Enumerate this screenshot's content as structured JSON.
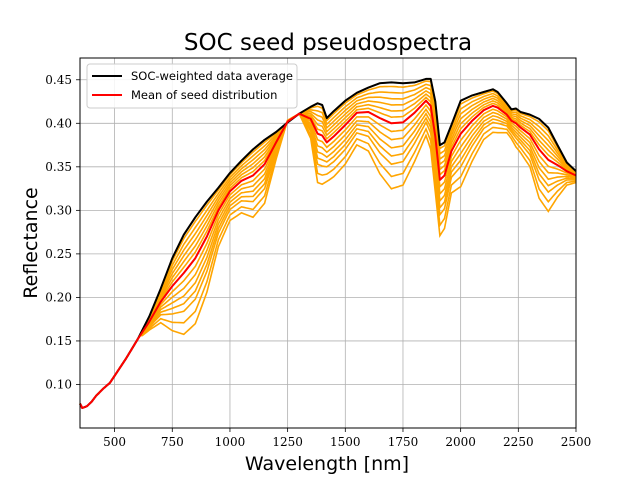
{
  "chart_data": {
    "type": "line",
    "title": "SOC seed pseudospectra",
    "xlabel": "Wavelength [nm]",
    "ylabel": "Reflectance",
    "xlim": [
      350,
      2500
    ],
    "ylim": [
      0.05,
      0.475
    ],
    "xticks": [
      500,
      750,
      1000,
      1250,
      1500,
      1750,
      2000,
      2250,
      2500
    ],
    "yticks": [
      0.1,
      0.15,
      0.2,
      0.25,
      0.3,
      0.35,
      0.4,
      0.45
    ],
    "xtick_labels": [
      "500",
      "750",
      "1000",
      "1250",
      "1500",
      "1750",
      "2000",
      "2250",
      "2500"
    ],
    "ytick_labels": [
      "0.10",
      "0.15",
      "0.20",
      "0.25",
      "0.30",
      "0.35",
      "0.40",
      "0.45"
    ],
    "grid": true,
    "legend_placement": "top-left",
    "series": [
      {
        "name": "SOC-weighted data average",
        "color": "#000000",
        "x": [
          350,
          360,
          380,
          400,
          420,
          450,
          480,
          500,
          550,
          600,
          650,
          700,
          750,
          800,
          850,
          900,
          950,
          1000,
          1050,
          1100,
          1150,
          1200,
          1250,
          1300,
          1350,
          1380,
          1400,
          1420,
          1450,
          1500,
          1550,
          1600,
          1650,
          1700,
          1750,
          1800,
          1850,
          1870,
          1890,
          1910,
          1930,
          1960,
          2000,
          2050,
          2100,
          2140,
          2160,
          2200,
          2220,
          2240,
          2260,
          2300,
          2340,
          2380,
          2420,
          2460,
          2500
        ],
        "y": [
          0.078,
          0.073,
          0.075,
          0.08,
          0.087,
          0.095,
          0.102,
          0.11,
          0.13,
          0.152,
          0.178,
          0.21,
          0.245,
          0.272,
          0.292,
          0.31,
          0.326,
          0.343,
          0.357,
          0.37,
          0.381,
          0.39,
          0.401,
          0.411,
          0.419,
          0.423,
          0.421,
          0.406,
          0.414,
          0.426,
          0.435,
          0.441,
          0.446,
          0.447,
          0.446,
          0.447,
          0.451,
          0.451,
          0.425,
          0.375,
          0.378,
          0.398,
          0.426,
          0.432,
          0.436,
          0.439,
          0.436,
          0.423,
          0.416,
          0.417,
          0.413,
          0.41,
          0.405,
          0.395,
          0.375,
          0.355,
          0.345
        ]
      },
      {
        "name": "Mean of seed distribution",
        "color": "#ff0000",
        "x": [
          350,
          360,
          380,
          400,
          420,
          450,
          480,
          500,
          550,
          600,
          650,
          700,
          750,
          800,
          850,
          900,
          950,
          1000,
          1050,
          1100,
          1150,
          1200,
          1250,
          1300,
          1350,
          1380,
          1400,
          1420,
          1450,
          1500,
          1550,
          1600,
          1650,
          1700,
          1750,
          1800,
          1850,
          1870,
          1890,
          1910,
          1930,
          1960,
          2000,
          2050,
          2100,
          2140,
          2160,
          2200,
          2220,
          2240,
          2260,
          2300,
          2340,
          2380,
          2420,
          2460,
          2500
        ],
        "y": [
          0.078,
          0.073,
          0.075,
          0.08,
          0.087,
          0.095,
          0.102,
          0.11,
          0.13,
          0.152,
          0.172,
          0.195,
          0.213,
          0.228,
          0.245,
          0.27,
          0.3,
          0.322,
          0.334,
          0.34,
          0.353,
          0.378,
          0.402,
          0.411,
          0.405,
          0.388,
          0.386,
          0.378,
          0.385,
          0.398,
          0.412,
          0.413,
          0.406,
          0.4,
          0.401,
          0.412,
          0.426,
          0.42,
          0.385,
          0.335,
          0.34,
          0.368,
          0.388,
          0.403,
          0.415,
          0.42,
          0.418,
          0.41,
          0.403,
          0.4,
          0.395,
          0.387,
          0.37,
          0.358,
          0.352,
          0.345,
          0.34
        ]
      }
    ]
  }
}
